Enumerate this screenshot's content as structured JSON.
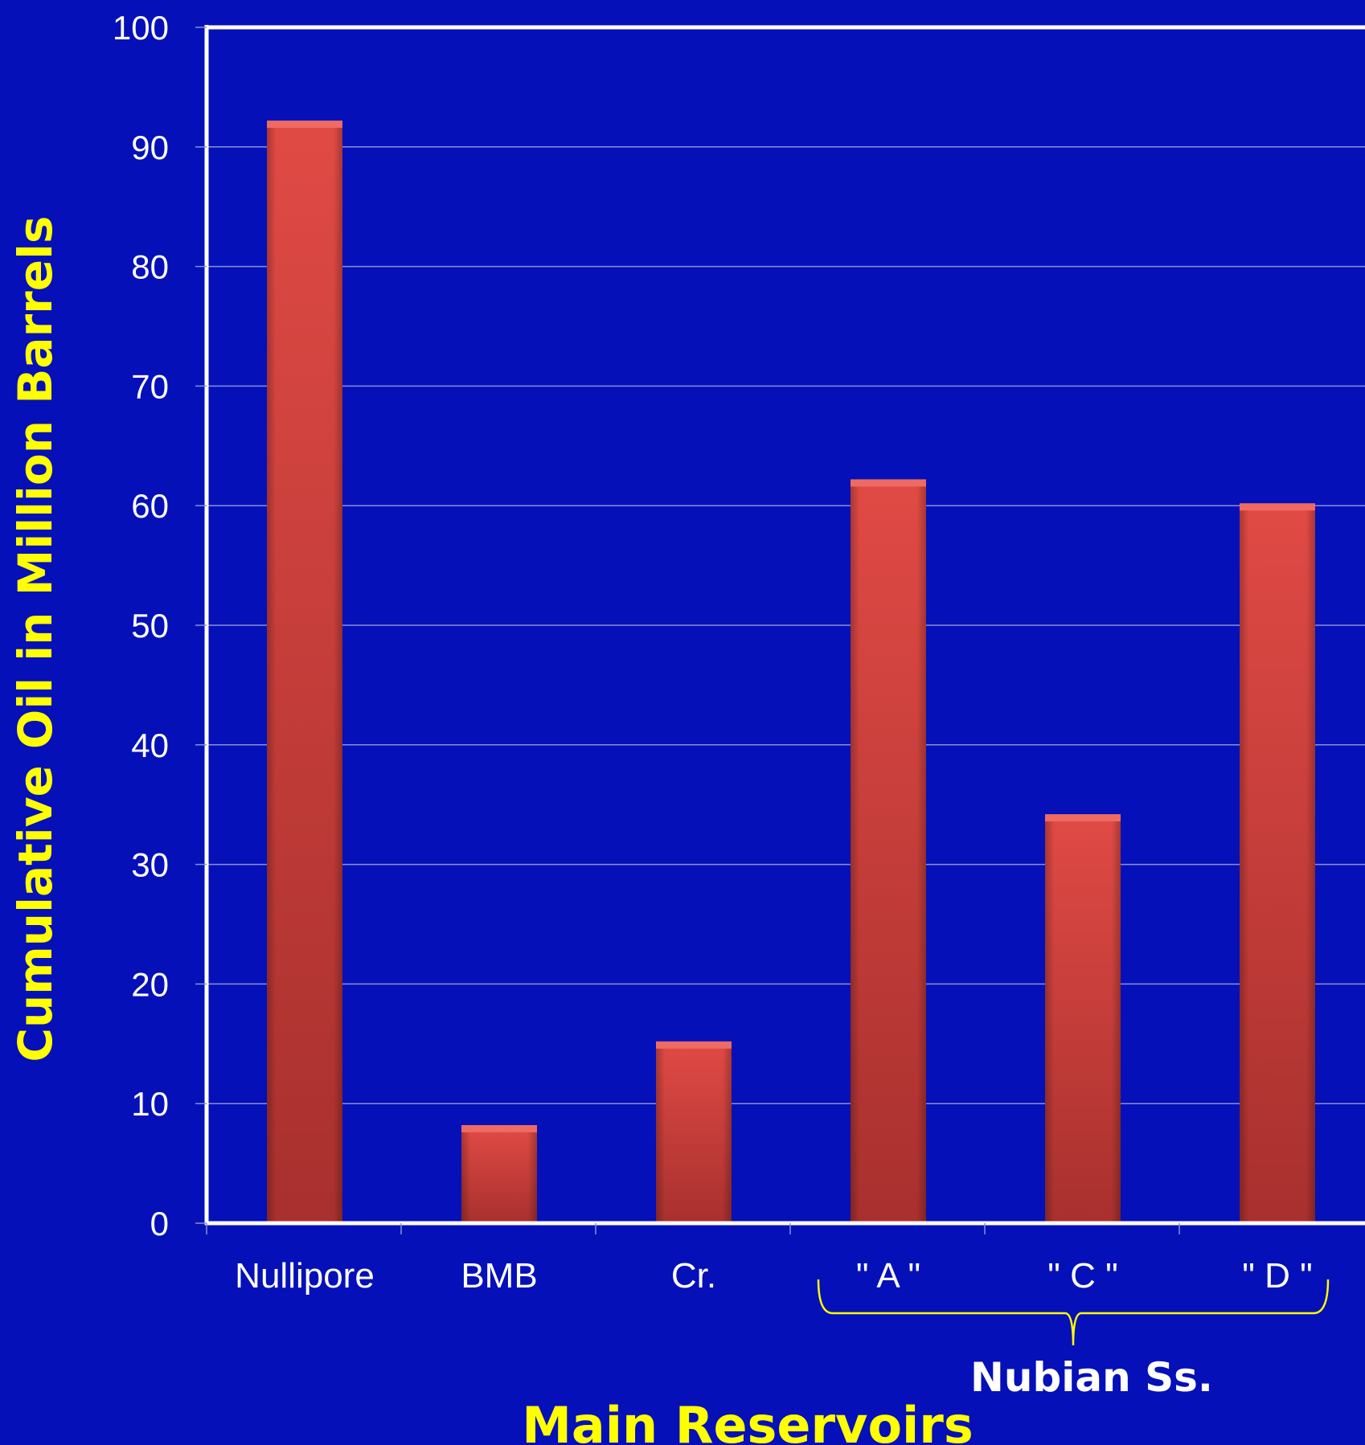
{
  "chart_data": {
    "type": "bar",
    "categories": [
      "Nullipore",
      "BMB",
      "Cr.",
      "\" A \"",
      "\" C \"",
      "\" D \""
    ],
    "values": [
      92,
      8,
      15,
      62,
      34,
      60
    ],
    "xlabel": "Main Reservoirs",
    "ylabel": "Cumulative Oil in Million Barrels",
    "ylim": [
      0,
      100
    ],
    "yticks": [
      0,
      10,
      20,
      30,
      40,
      50,
      60,
      70,
      80,
      90,
      100
    ],
    "grid": true,
    "group_annotation": {
      "label": "Nubian Ss.",
      "categories": [
        "\" A \"",
        "\" C \"",
        "\" D \""
      ]
    },
    "colors": {
      "background": "#0510b8",
      "bar": "#d8403c",
      "bar_dark": "#a8302e",
      "axis": "#ffffff",
      "grid": "#8a8fd8",
      "title": "#ffff00",
      "tick_text": "#ffffff",
      "annotation_text": "#ffffff",
      "brace": "#ffff00"
    }
  }
}
